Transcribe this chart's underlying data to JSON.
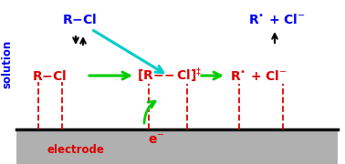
{
  "figsize": [
    3.78,
    1.8
  ],
  "dpi": 100,
  "bg_color": "#ffffff",
  "electrode_color": "#b0b0b0",
  "blue_color": "#0000ee",
  "red_color": "#dd0000",
  "lime_color": "#00cc00",
  "cyan_color": "#00cccc",
  "black_color": "#000000"
}
